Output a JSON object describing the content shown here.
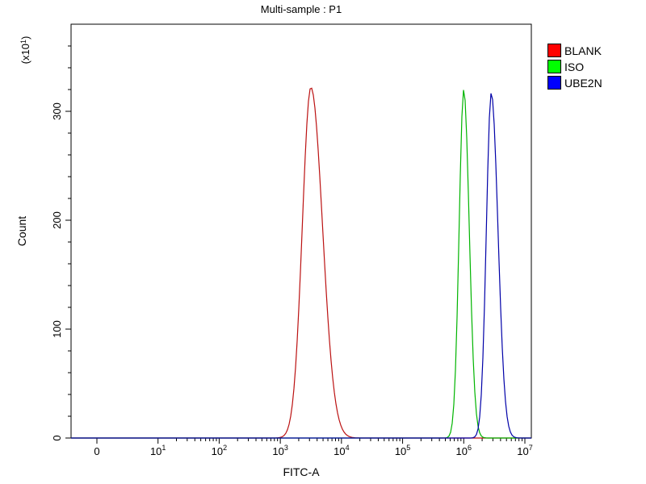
{
  "title": "Multi-sample : P1",
  "chart_data": {
    "type": "line",
    "title": "Multi-sample : P1",
    "xlabel": "FITC-A",
    "ylabel": "Count",
    "y_axis_multiplier": {
      "prefix": "(x10",
      "exponent": "1",
      "suffix": ")"
    },
    "x_scale": "log",
    "x_ticks": [
      {
        "label": "0"
      },
      {
        "label": "10",
        "exp": "1"
      },
      {
        "label": "10",
        "exp": "2"
      },
      {
        "label": "10",
        "exp": "3"
      },
      {
        "label": "10",
        "exp": "4"
      },
      {
        "label": "10",
        "exp": "5"
      },
      {
        "label": "10",
        "exp": "6"
      },
      {
        "label": "10",
        "exp": "7"
      }
    ],
    "y_ticks": [
      0,
      100,
      200,
      300
    ],
    "ylim": [
      0,
      380
    ],
    "grid": false,
    "legend_position": "top-right",
    "series": [
      {
        "name": "BLANK",
        "line_color": "#bb1111",
        "peak_value": 3200,
        "peak_log10": 3.5,
        "peak_height": 322,
        "sigma_left_decades": 0.14,
        "sigma_right_decades": 0.19
      },
      {
        "name": "ISO",
        "line_color": "#00b400",
        "peak_value": 1000000,
        "peak_log10": 6.0,
        "peak_height": 320,
        "sigma_left_decades": 0.075,
        "sigma_right_decades": 0.09
      },
      {
        "name": "UBE2N",
        "line_color": "#0000a8",
        "peak_value": 2800000,
        "peak_log10": 6.45,
        "peak_height": 317,
        "sigma_left_decades": 0.08,
        "sigma_right_decades": 0.11
      }
    ],
    "legend": {
      "entries": [
        {
          "label": "BLANK",
          "color": "#ff0000"
        },
        {
          "label": "ISO",
          "color": "#00ff00"
        },
        {
          "label": "UBE2N",
          "color": "#0000ff"
        }
      ]
    }
  }
}
